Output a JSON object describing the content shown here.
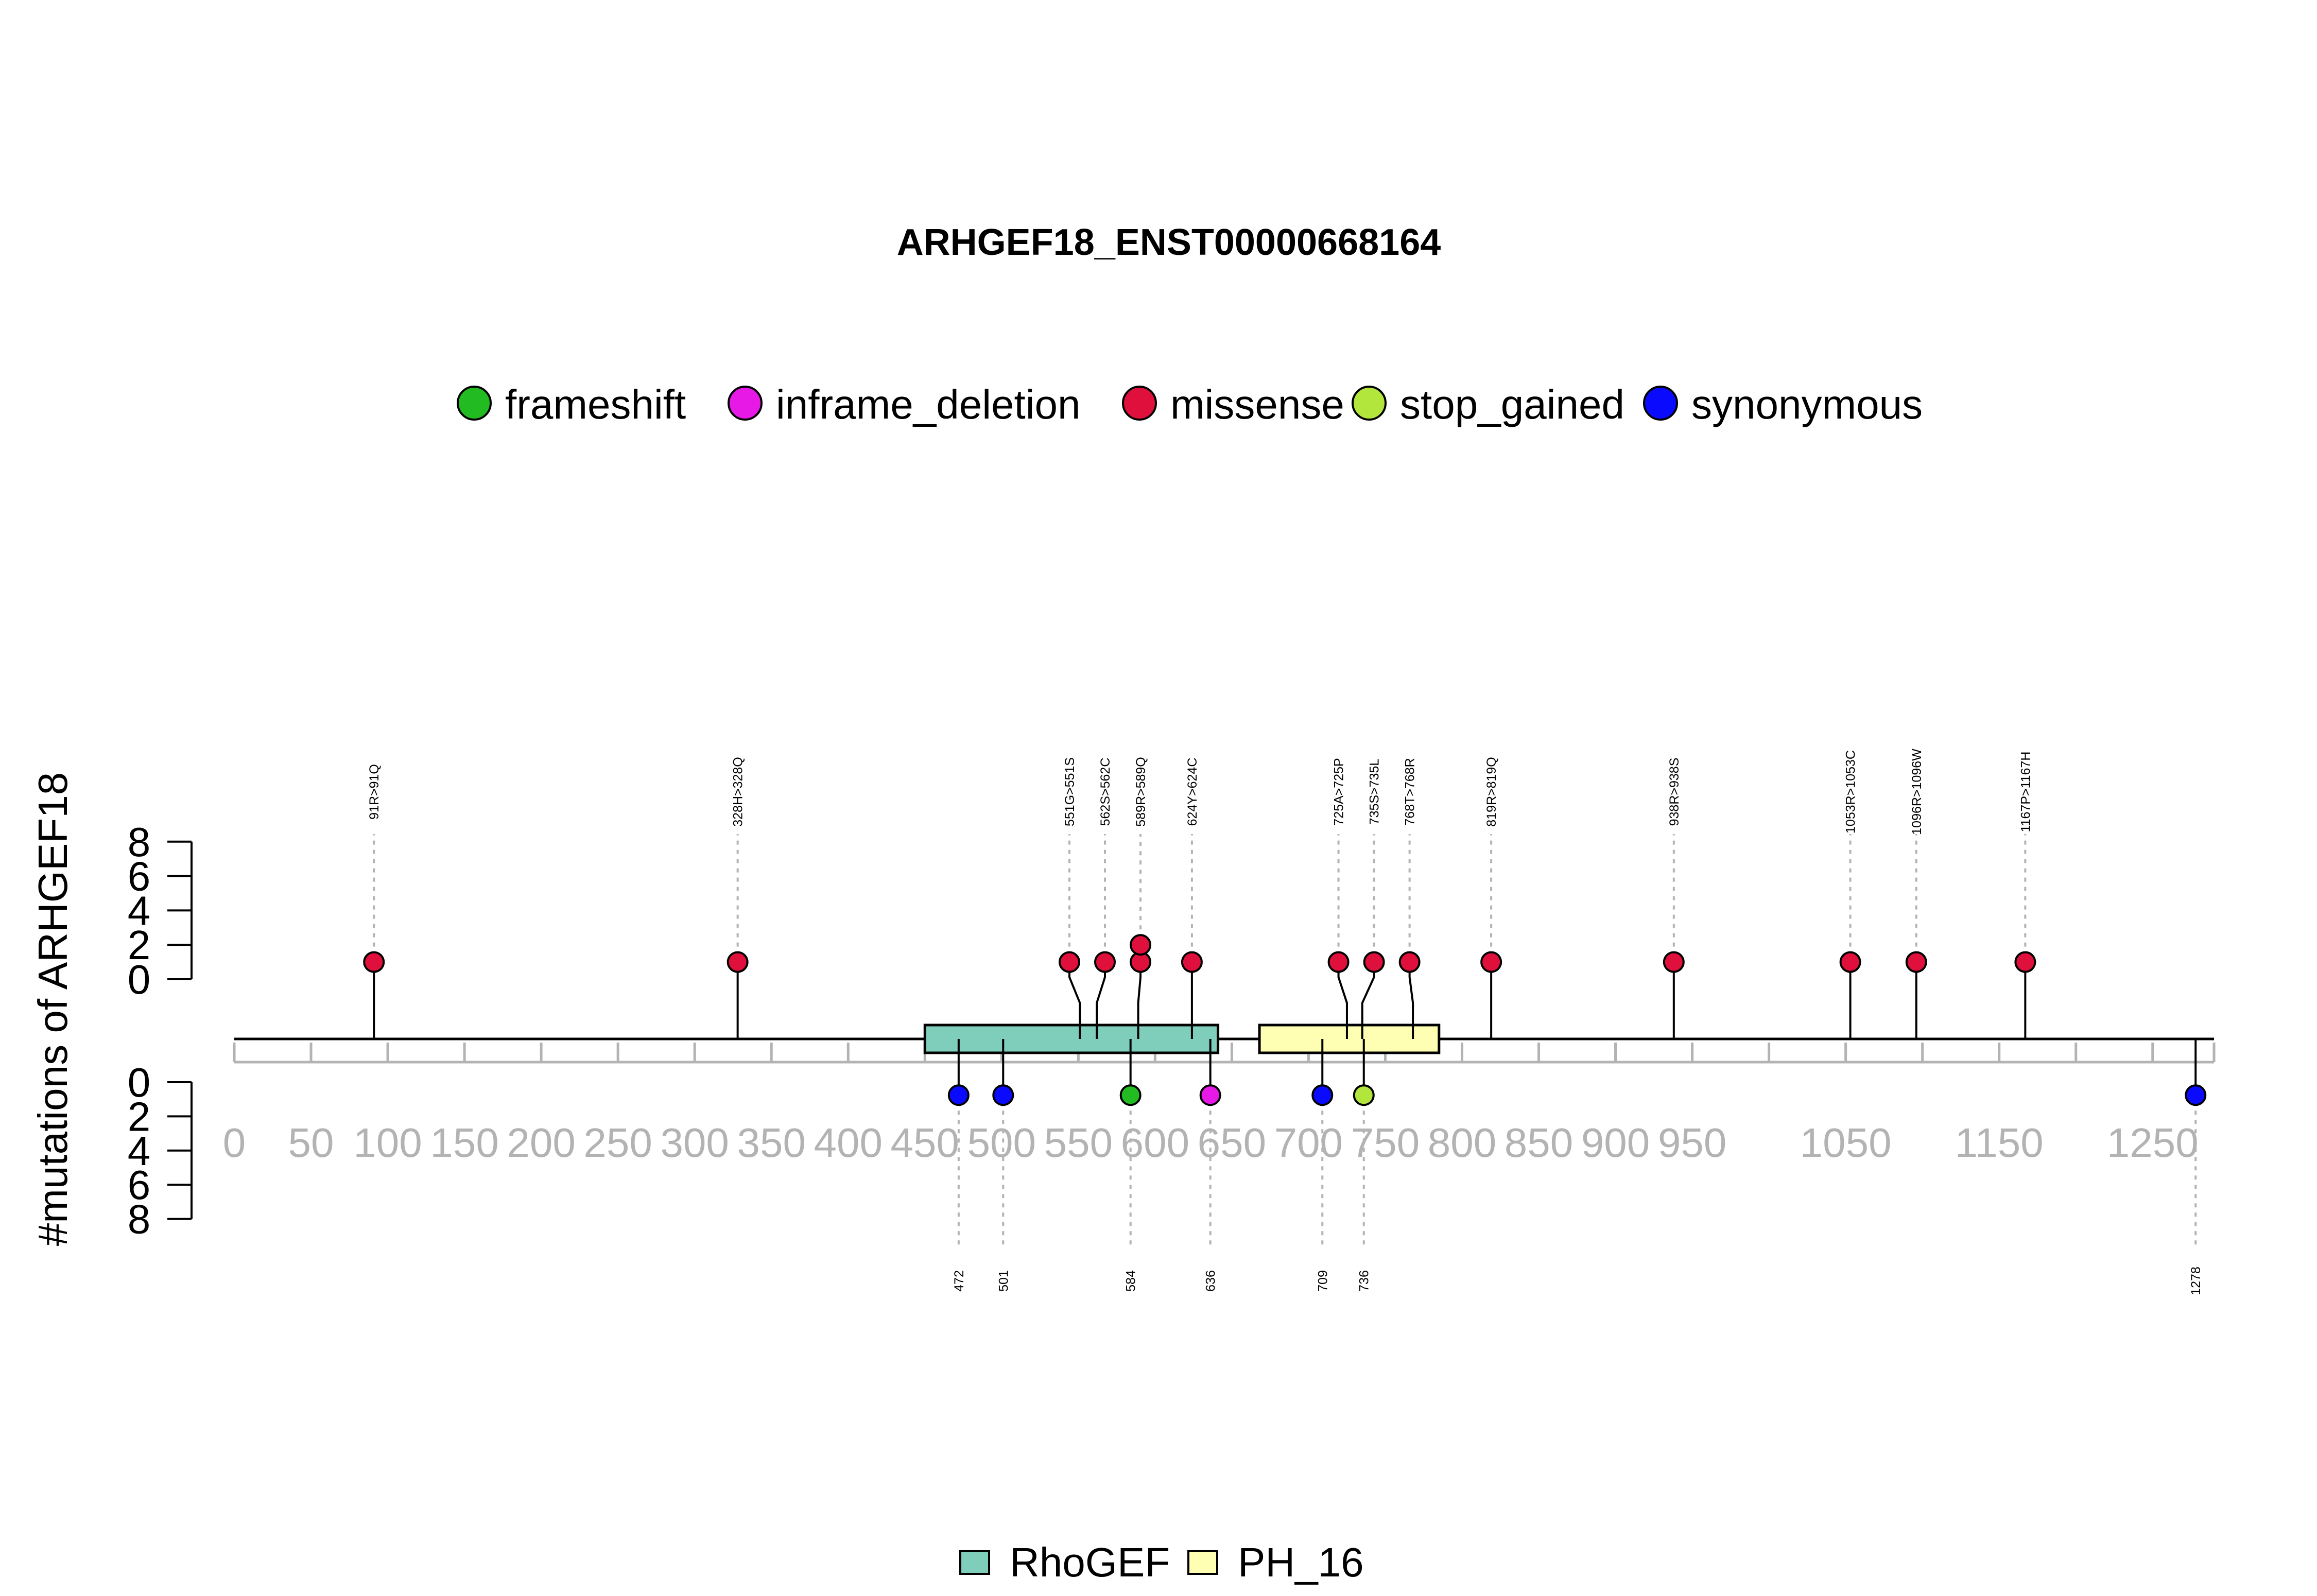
{
  "chart_data": {
    "type": "lollipop",
    "title": "ARHGEF18_ENST00000668164",
    "ylabel": "#mutations of ARHGEF18",
    "protein_length": 1290,
    "xlim": [
      0,
      1290
    ],
    "x_ticks": [
      0,
      50,
      100,
      150,
      200,
      250,
      300,
      350,
      400,
      450,
      500,
      550,
      600,
      650,
      700,
      750,
      800,
      850,
      900,
      950,
      1050,
      1150,
      1250
    ],
    "y_ticks": [
      0,
      2,
      4,
      6,
      8
    ],
    "ylim": [
      0,
      8
    ],
    "mutation_types": [
      {
        "name": "frameshift",
        "color": "#22bb22"
      },
      {
        "name": "inframe_deletion",
        "color": "#e619e6"
      },
      {
        "name": "missense",
        "color": "#e0103c"
      },
      {
        "name": "stop_gained",
        "color": "#b3e63c"
      },
      {
        "name": "synonymous",
        "color": "#0a0aff"
      }
    ],
    "domains": [
      {
        "name": "RhoGEF",
        "start": 450,
        "end": 641,
        "color": "#7fcdbb"
      },
      {
        "name": "PH_16",
        "start": 668,
        "end": 785,
        "color": "#ffffb3"
      }
    ],
    "mutations_top": [
      {
        "position": 91,
        "label": "91R>91Q",
        "type": "missense",
        "count": 1
      },
      {
        "position": 328,
        "label": "328H>328Q",
        "type": "missense",
        "count": 1
      },
      {
        "position": 551,
        "label": "551G>551S",
        "type": "missense",
        "count": 1
      },
      {
        "position": 562,
        "label": "562S>562C",
        "type": "missense",
        "count": 1
      },
      {
        "position": 589,
        "label": "589R>589Q",
        "type": "missense",
        "count": 2
      },
      {
        "position": 624,
        "label": "624Y>624C",
        "type": "missense",
        "count": 1
      },
      {
        "position": 725,
        "label": "725A>725P",
        "type": "missense",
        "count": 1
      },
      {
        "position": 735,
        "label": "735S>735L",
        "type": "missense",
        "count": 1
      },
      {
        "position": 768,
        "label": "768T>768R",
        "type": "missense",
        "count": 1
      },
      {
        "position": 819,
        "label": "819R>819Q",
        "type": "missense",
        "count": 1
      },
      {
        "position": 938,
        "label": "938R>938S",
        "type": "missense",
        "count": 1
      },
      {
        "position": 1053,
        "label": "1053R>1053C",
        "type": "missense",
        "count": 1
      },
      {
        "position": 1096,
        "label": "1096R>1096W",
        "type": "missense",
        "count": 1
      },
      {
        "position": 1167,
        "label": "1167P>1167H",
        "type": "missense",
        "count": 1
      }
    ],
    "mutations_bottom": [
      {
        "position": 472,
        "label": "472",
        "type": "synonymous",
        "count": 1
      },
      {
        "position": 501,
        "label": "501",
        "type": "synonymous",
        "count": 1
      },
      {
        "position": 584,
        "label": "584",
        "type": "frameshift",
        "count": 1
      },
      {
        "position": 636,
        "label": "636",
        "type": "inframe_deletion",
        "count": 1
      },
      {
        "position": 709,
        "label": "709",
        "type": "synonymous",
        "count": 1
      },
      {
        "position": 736,
        "label": "736",
        "type": "stop_gained",
        "count": 1
      },
      {
        "position": 1278,
        "label": "1278",
        "type": "synonymous",
        "count": 1
      }
    ]
  }
}
